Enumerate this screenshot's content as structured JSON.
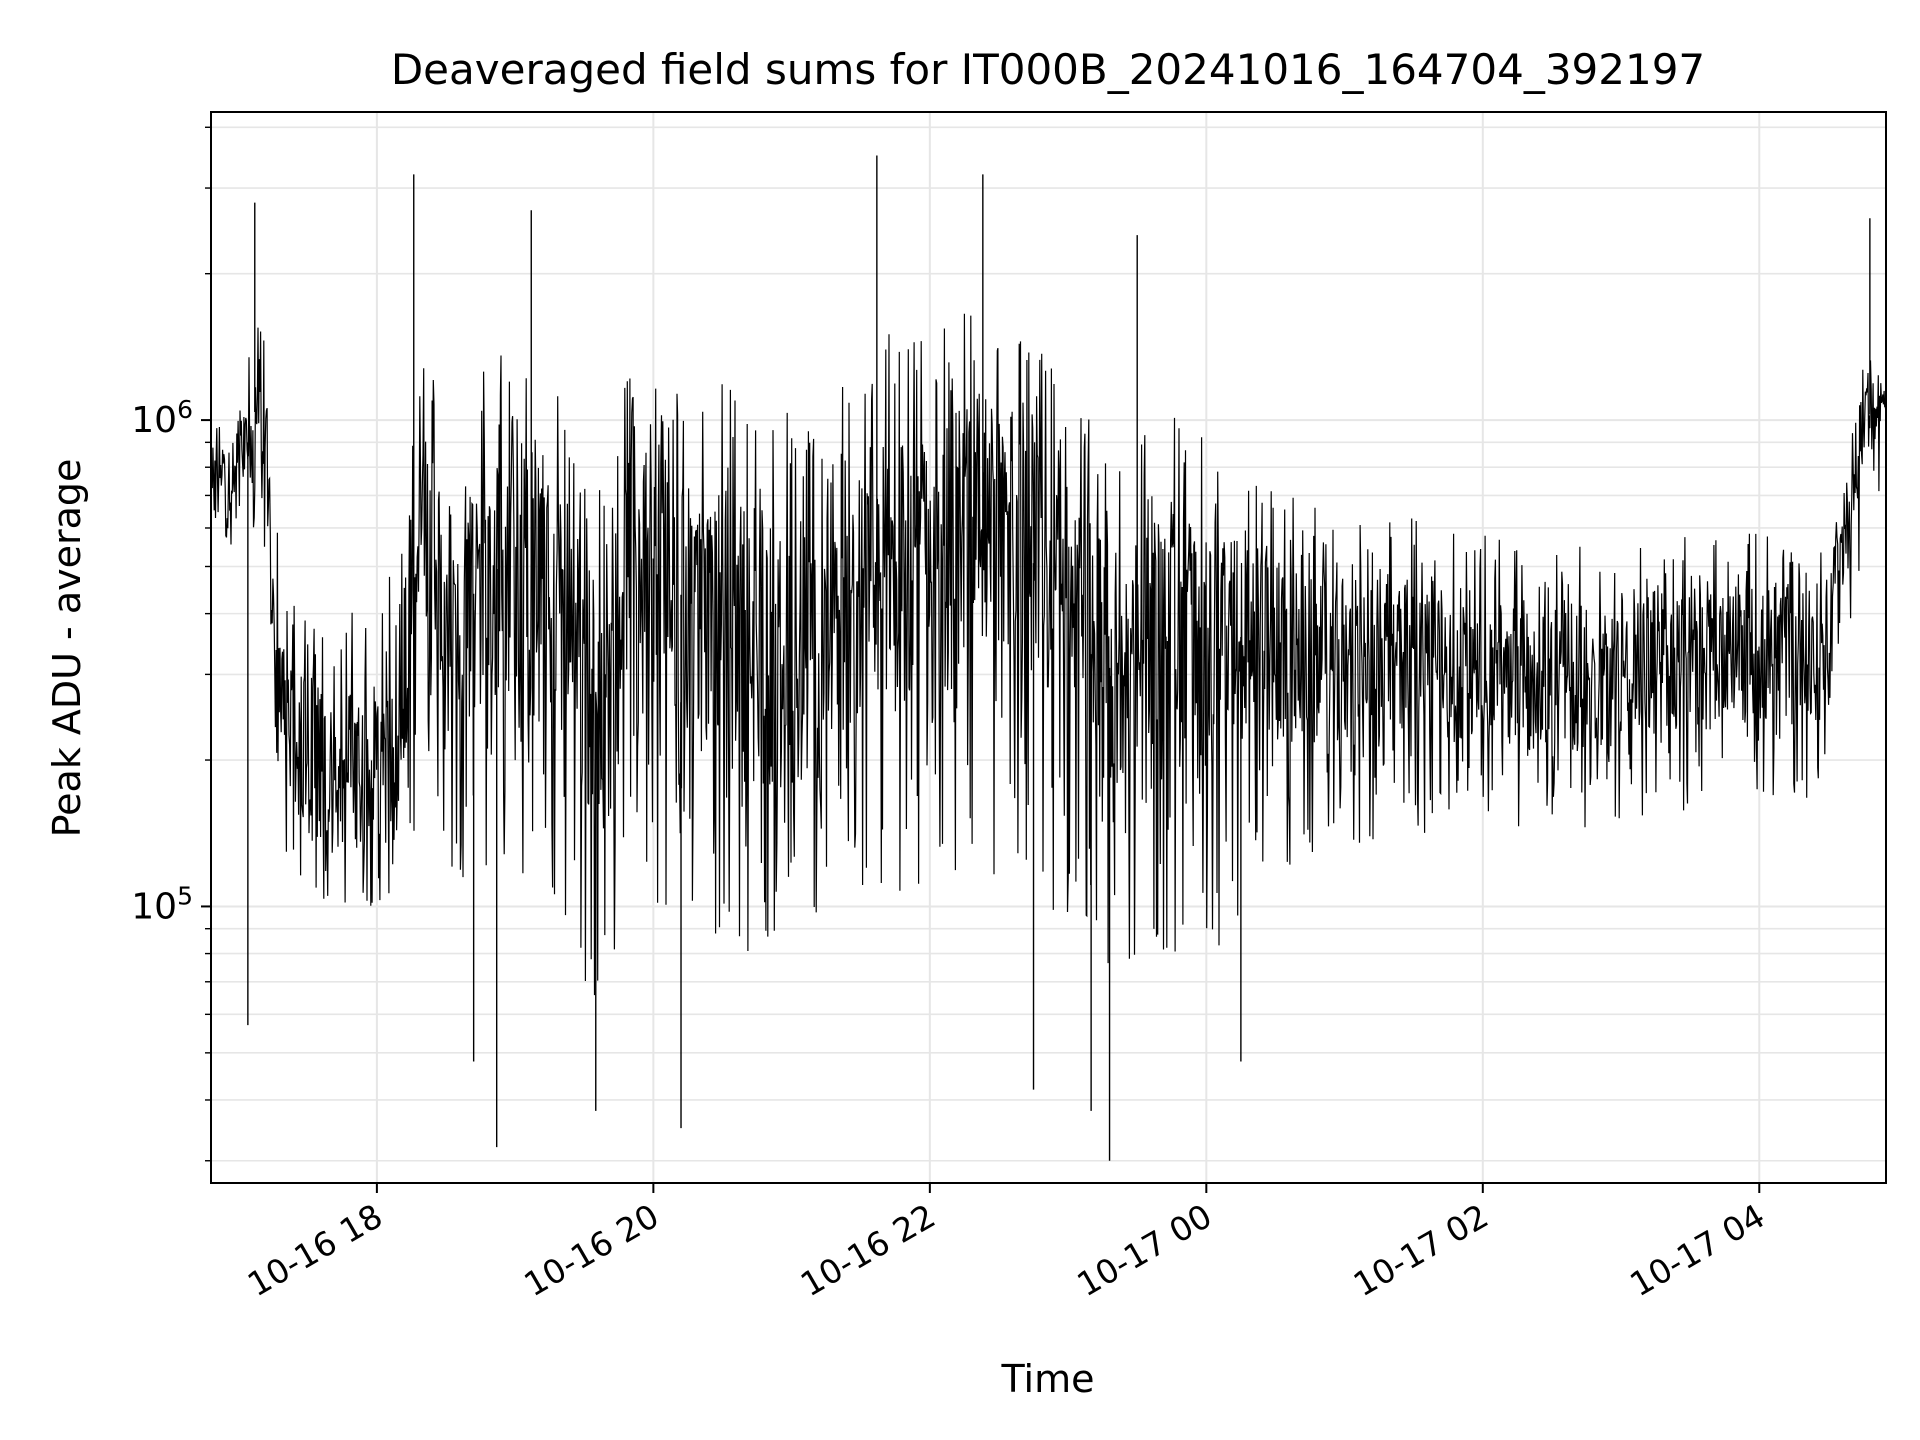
{
  "chart_data": {
    "type": "line",
    "title": "Deaveraged field sums for IT000B_20241016_164704_392197",
    "xlabel": "Time",
    "ylabel": "Peak ADU - average",
    "y_scale": "log",
    "ylim": [
      27000,
      4300000
    ],
    "xlim": [
      "2024-10-16 16:48",
      "2024-10-17 04:55"
    ],
    "grid": true,
    "line_color": "#000000",
    "grid_color": "#e6e6e6",
    "x_ticks": [
      {
        "value": "2024-10-16 18:00",
        "label": "10-16 18"
      },
      {
        "value": "2024-10-16 20:00",
        "label": "10-16 20"
      },
      {
        "value": "2024-10-16 22:00",
        "label": "10-16 22"
      },
      {
        "value": "2024-10-17 00:00",
        "label": "10-17 00"
      },
      {
        "value": "2024-10-17 02:00",
        "label": "10-17 02"
      },
      {
        "value": "2024-10-17 04:00",
        "label": "10-17 04"
      }
    ],
    "y_ticks": [
      {
        "value": 100000,
        "base": "10",
        "exp": "5"
      },
      {
        "value": 1000000,
        "base": "10",
        "exp": "6"
      }
    ],
    "series": [
      {
        "x": [
          "2024-10-16 16:48",
          "2024-10-16 16:56",
          "2024-10-16 17:04",
          "2024-10-16 17:10",
          "2024-10-16 17:18",
          "2024-10-16 17:30",
          "2024-10-16 17:45",
          "2024-10-16 18:00",
          "2024-10-16 18:10",
          "2024-10-16 18:20",
          "2024-10-16 18:30",
          "2024-10-16 18:45",
          "2024-10-16 19:00",
          "2024-10-16 19:15",
          "2024-10-16 19:30",
          "2024-10-16 19:40",
          "2024-10-16 19:50",
          "2024-10-16 20:00",
          "2024-10-16 20:20",
          "2024-10-16 20:40",
          "2024-10-16 21:00",
          "2024-10-16 21:20",
          "2024-10-16 21:40",
          "2024-10-16 22:00",
          "2024-10-16 22:20",
          "2024-10-16 22:40",
          "2024-10-16 23:00",
          "2024-10-16 23:15",
          "2024-10-16 23:30",
          "2024-10-16 23:45",
          "2024-10-17 00:00",
          "2024-10-17 00:20",
          "2024-10-17 00:40",
          "2024-10-17 01:00",
          "2024-10-17 01:30",
          "2024-10-17 02:00",
          "2024-10-17 02:30",
          "2024-10-17 03:00",
          "2024-10-17 03:30",
          "2024-10-17 04:00",
          "2024-10-17 04:30",
          "2024-10-17 04:45",
          "2024-10-17 04:55"
        ],
        "y": [
          800000,
          750000,
          900000,
          1200000,
          250000,
          200000,
          180000,
          200000,
          190000,
          700000,
          400000,
          450000,
          550000,
          420000,
          300000,
          250000,
          600000,
          500000,
          400000,
          350000,
          300000,
          350000,
          500000,
          450000,
          600000,
          550000,
          400000,
          300000,
          350000,
          400000,
          300000,
          380000,
          320000,
          300000,
          330000,
          310000,
          280000,
          300000,
          320000,
          330000,
          340000,
          1000000,
          1100000
        ],
        "band_high": [
          1000000,
          1000000,
          1300000,
          2000000,
          500000,
          450000,
          400000,
          450000,
          500000,
          1600000,
          1200000,
          1300000,
          1500000,
          1300000,
          900000,
          700000,
          1400000,
          1300000,
          1200000,
          1200000,
          1100000,
          1200000,
          1500000,
          1600000,
          1700000,
          1600000,
          1200000,
          1000000,
          1000000,
          1100000,
          900000,
          800000,
          700000,
          600000,
          650000,
          600000,
          550000,
          560000,
          580000,
          600000,
          580000,
          1400000,
          1300000
        ],
        "band_low": [
          600000,
          550000,
          600000,
          500000,
          130000,
          100000,
          100000,
          100000,
          110000,
          150000,
          110000,
          120000,
          110000,
          100000,
          70000,
          60000,
          150000,
          100000,
          90000,
          80000,
          90000,
          100000,
          110000,
          100000,
          120000,
          110000,
          90000,
          70000,
          80000,
          80000,
          70000,
          110000,
          120000,
          130000,
          140000,
          150000,
          140000,
          150000,
          150000,
          160000,
          170000,
          500000,
          800000
        ],
        "spikes": [
          {
            "x": "2024-10-16 17:07",
            "y": 2800000
          },
          {
            "x": "2024-10-16 17:04",
            "y": 57000
          },
          {
            "x": "2024-10-16 18:16",
            "y": 3200000
          },
          {
            "x": "2024-10-16 18:42",
            "y": 48000
          },
          {
            "x": "2024-10-16 18:52",
            "y": 32000
          },
          {
            "x": "2024-10-16 19:07",
            "y": 2700000
          },
          {
            "x": "2024-10-16 19:35",
            "y": 38000
          },
          {
            "x": "2024-10-16 20:12",
            "y": 35000
          },
          {
            "x": "2024-10-16 21:37",
            "y": 3500000
          },
          {
            "x": "2024-10-16 22:23",
            "y": 3200000
          },
          {
            "x": "2024-10-16 22:45",
            "y": 42000
          },
          {
            "x": "2024-10-16 23:10",
            "y": 38000
          },
          {
            "x": "2024-10-16 23:18",
            "y": 30000
          },
          {
            "x": "2024-10-16 23:30",
            "y": 2400000
          },
          {
            "x": "2024-10-17 00:15",
            "y": 48000
          },
          {
            "x": "2024-10-17 04:48",
            "y": 2600000
          }
        ]
      }
    ]
  }
}
